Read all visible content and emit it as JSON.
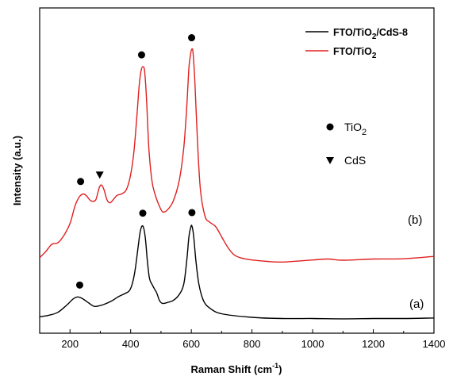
{
  "chart_data": {
    "type": "line",
    "xlabel": "Raman Shift (cm",
    "xlabel_sup": "-1",
    "xlabel_close": ")",
    "ylabel": "Intensity (a.u.)",
    "xlim": [
      100,
      1400
    ],
    "ylim": [
      0,
      1
    ],
    "xticks": [
      200,
      400,
      600,
      800,
      1000,
      1200,
      1400
    ],
    "xticklabels": [
      "200",
      "400",
      "600",
      "800",
      "1000",
      "1200",
      "1400"
    ],
    "yticks_shown": false,
    "legend_position": "top-right",
    "series": [
      {
        "name": "FTO/TiO2/CdS-8",
        "name_parts": [
          "FTO/TiO",
          "2",
          "/CdS-8"
        ],
        "color": "#000000",
        "curve_label": "(a)",
        "x": [
          100,
          130,
          160,
          190,
          210,
          225,
          240,
          260,
          280,
          300,
          320,
          340,
          360,
          380,
          395,
          405,
          415,
          425,
          432,
          440,
          448,
          455,
          462,
          470,
          478,
          486,
          495,
          505,
          520,
          540,
          560,
          575,
          585,
          592,
          598,
          602,
          608,
          615,
          625,
          640,
          660,
          700,
          800,
          900,
          1000,
          1100,
          1200,
          1300,
          1400
        ],
        "y": [
          0.01,
          0.015,
          0.025,
          0.05,
          0.07,
          0.077,
          0.072,
          0.058,
          0.045,
          0.048,
          0.055,
          0.065,
          0.078,
          0.088,
          0.097,
          0.12,
          0.17,
          0.25,
          0.3,
          0.317,
          0.28,
          0.2,
          0.14,
          0.12,
          0.105,
          0.09,
          0.065,
          0.055,
          0.058,
          0.065,
          0.085,
          0.12,
          0.2,
          0.28,
          0.312,
          0.317,
          0.28,
          0.2,
          0.12,
          0.065,
          0.04,
          0.02,
          0.008,
          0.004,
          0.004,
          0.003,
          0.004,
          0.004,
          0.006
        ]
      },
      {
        "name": "FTO/TiO2",
        "name_parts": [
          "FTO/TiO",
          "2",
          ""
        ],
        "color": "#e02020",
        "curve_label": "(b)",
        "x": [
          100,
          120,
          140,
          160,
          180,
          200,
          215,
          225,
          235,
          245,
          255,
          265,
          275,
          285,
          292,
          298,
          304,
          312,
          322,
          332,
          342,
          355,
          370,
          385,
          398,
          410,
          420,
          428,
          434,
          440,
          446,
          452,
          460,
          470,
          480,
          492,
          505,
          520,
          540,
          560,
          575,
          585,
          592,
          598,
          602,
          606,
          612,
          620,
          630,
          645,
          660,
          680,
          700,
          720,
          740,
          760,
          780,
          800,
          850,
          900,
          1000,
          1050,
          1100,
          1200,
          1300,
          1400
        ],
        "y": [
          0.21,
          0.23,
          0.255,
          0.26,
          0.285,
          0.325,
          0.38,
          0.405,
          0.42,
          0.425,
          0.418,
          0.405,
          0.4,
          0.405,
          0.43,
          0.45,
          0.455,
          0.44,
          0.405,
          0.395,
          0.405,
          0.42,
          0.425,
          0.438,
          0.48,
          0.56,
          0.68,
          0.79,
          0.84,
          0.855,
          0.84,
          0.75,
          0.58,
          0.47,
          0.425,
          0.39,
          0.365,
          0.37,
          0.4,
          0.47,
          0.58,
          0.72,
          0.85,
          0.9,
          0.915,
          0.9,
          0.8,
          0.61,
          0.44,
          0.35,
          0.33,
          0.315,
          0.28,
          0.245,
          0.22,
          0.21,
          0.205,
          0.202,
          0.197,
          0.195,
          0.202,
          0.205,
          0.201,
          0.205,
          0.206,
          0.214
        ]
      }
    ],
    "markers": [
      {
        "symbol": "circle",
        "x": 232,
        "y": 0.117,
        "series": "FTO/TiO2/CdS-8"
      },
      {
        "symbol": "circle",
        "x": 440,
        "y": 0.36,
        "series": "FTO/TiO2/CdS-8"
      },
      {
        "symbol": "circle",
        "x": 602,
        "y": 0.362,
        "series": "FTO/TiO2/CdS-8"
      },
      {
        "symbol": "circle",
        "x": 235,
        "y": 0.467,
        "series": "FTO/TiO2"
      },
      {
        "symbol": "triangle-down",
        "x": 298,
        "y": 0.49,
        "series": "FTO/TiO2"
      },
      {
        "symbol": "circle",
        "x": 436,
        "y": 0.895,
        "series": "FTO/TiO2"
      },
      {
        "symbol": "circle",
        "x": 601,
        "y": 0.953,
        "series": "FTO/TiO2"
      }
    ],
    "marker_key": [
      {
        "symbol": "circle",
        "label_parts": [
          "TiO",
          "2"
        ]
      },
      {
        "symbol": "triangle-down",
        "label_parts": [
          "CdS",
          ""
        ]
      }
    ]
  }
}
